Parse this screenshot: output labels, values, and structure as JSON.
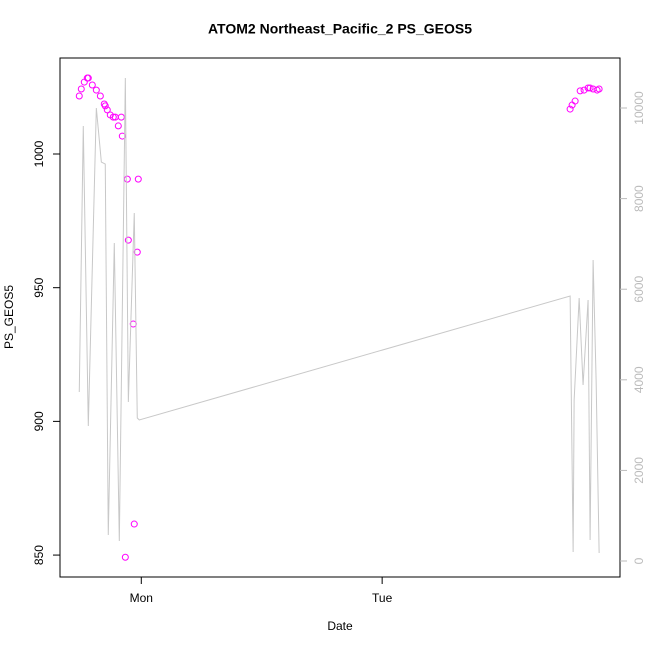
{
  "chart_data": {
    "type": "scatter",
    "title": "ATOM2 Northeast_Pacific_2 PS_GEOS5",
    "xlabel": "Date",
    "ylabel": "PS_GEOS5",
    "xlim": [
      -8.1,
      47.7
    ],
    "xticks": [
      {
        "value": 0,
        "label": "Mon"
      },
      {
        "value": 24,
        "label": "Tue"
      }
    ],
    "ylim": [
      841.8,
      1035.9
    ],
    "yticks": [
      850,
      900,
      950,
      1000
    ],
    "y2lim": [
      -353,
      11104
    ],
    "y2ticks": [
      0,
      2000,
      4000,
      6000,
      8000,
      10000
    ],
    "y2_color": "#bbbbbb",
    "series": [
      {
        "type": "scatter",
        "color": "#ff00ff",
        "x": [
          -6.18,
          -5.98,
          -5.68,
          -5.38,
          -5.28,
          -4.88,
          -4.48,
          -4.08,
          -3.69,
          -3.59,
          -3.39,
          -3.09,
          -2.79,
          -2.59,
          -2.29,
          -1.99,
          -1.89,
          -1.59,
          -1.39,
          -1.29,
          -0.8,
          -0.7,
          -0.4,
          -0.3,
          42.73,
          42.93,
          43.23,
          43.73,
          44.12,
          44.52,
          44.72,
          45.02,
          45.42,
          45.62
        ],
        "values": [
          1021.7,
          1024.3,
          1026.9,
          1028.4,
          1028.4,
          1025.8,
          1023.9,
          1021.7,
          1018.7,
          1018.0,
          1016.5,
          1014.6,
          1013.8,
          1013.8,
          1010.5,
          1013.8,
          1006.7,
          849.2,
          990.6,
          967.8,
          936.4,
          861.6,
          963.3,
          990.6,
          1016.8,
          1018.3,
          1019.8,
          1023.6,
          1023.9,
          1024.7,
          1024.7,
          1024.3,
          1023.9,
          1024.3
        ]
      },
      {
        "type": "line",
        "axis": "y2",
        "color": "#c8c8c8",
        "x": [
          -6.18,
          -5.78,
          -5.28,
          -4.48,
          -3.98,
          -3.59,
          -3.29,
          -2.69,
          -2.19,
          -1.59,
          -1.29,
          -0.7,
          -0.4,
          -0.2,
          42.73,
          43.03,
          43.13,
          43.63,
          44.02,
          44.52,
          44.72,
          45.02,
          45.32,
          45.62
        ],
        "values": [
          3731,
          9603,
          2980,
          10000,
          8808,
          8764,
          574,
          7020,
          442,
          10662,
          3510,
          7682,
          3157,
          3113,
          5850,
          199,
          3554,
          5806,
          3885,
          5762,
          464,
          6645,
          3996,
          177
        ]
      }
    ]
  }
}
